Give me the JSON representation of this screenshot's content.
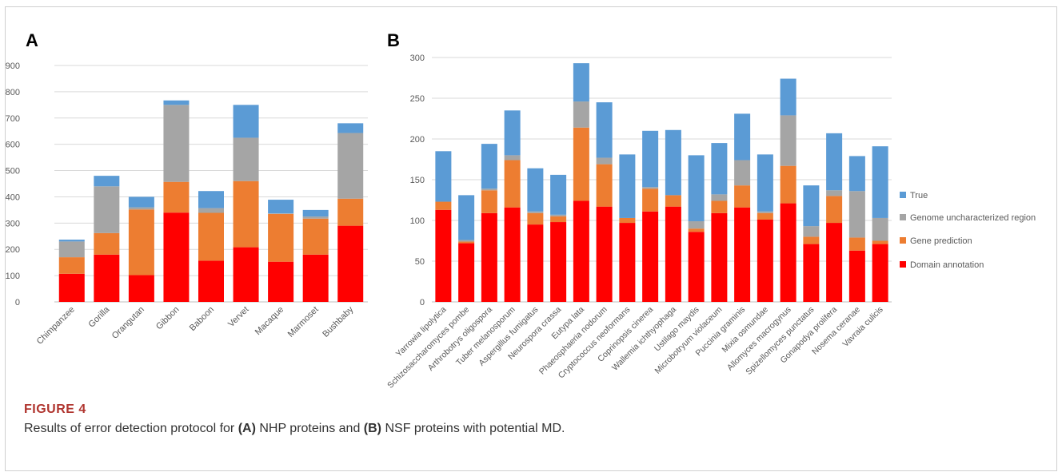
{
  "figure": {
    "label": "FIGURE 4",
    "caption": {
      "pre": "Results of error detection protocol for ",
      "a": "(A)",
      "mid1": " NHP proteins and ",
      "b": "(B)",
      "post": " NSF proteins with potential MD."
    }
  },
  "colors": {
    "Domain annotation": "#ff0000",
    "Gene prediction": "#ed7d31",
    "Genome uncharacterized region": "#a5a5a5",
    "True": "#5b9bd5",
    "grid": "#d9d9d9",
    "axis_text": "#595959"
  },
  "chart_data": [
    {
      "panel": "A",
      "type": "bar",
      "stacked": true,
      "categories": [
        "Chimpanzee",
        "Gorilla",
        "Orangutan",
        "Gibbon",
        "Baboon",
        "Vervet",
        "Macaque",
        "Marmoset",
        "Bushbaby"
      ],
      "series": [
        {
          "name": "Domain annotation",
          "values": [
            107,
            180,
            102,
            340,
            157,
            208,
            153,
            180,
            290
          ]
        },
        {
          "name": "Gene prediction",
          "values": [
            63,
            82,
            250,
            117,
            182,
            252,
            182,
            137,
            103
          ]
        },
        {
          "name": "Genome uncharacterized region",
          "values": [
            60,
            178,
            8,
            293,
            18,
            165,
            2,
            8,
            250
          ]
        },
        {
          "name": "True",
          "values": [
            7,
            40,
            40,
            17,
            65,
            125,
            52,
            25,
            37
          ]
        }
      ],
      "ylim": [
        0,
        900
      ],
      "yticks": [
        0,
        100,
        200,
        300,
        400,
        500,
        600,
        700,
        800,
        900
      ],
      "grid": true,
      "legend": "none"
    },
    {
      "panel": "B",
      "type": "bar",
      "stacked": true,
      "categories": [
        "Yarrowia lipolytica",
        "Schizosaccharomyces pombe",
        "Arthrobotrys oligospora",
        "Tuber melanosporum",
        "Aspergillus fumigatus",
        "Neurospora crassa",
        "Eutypa lata",
        "Phaeosphaeria nodorum",
        "Cryptococcus neoformans",
        "Coprinopsis cinerea",
        "Wallemia ichthyophaga",
        "Ustilago maydis",
        "Microbotryum violaceum",
        "Puccinia graminis",
        "Mixia osmundae",
        "Allomyces macrogynus",
        "Spizellomyces punctatus",
        "Gonapodya prolifera",
        "Nosema ceranae",
        "Vavraia culicis"
      ],
      "series": [
        {
          "name": "Domain annotation",
          "values": [
            113,
            72,
            109,
            116,
            95,
            98,
            124,
            117,
            97,
            111,
            117,
            86,
            109,
            116,
            101,
            121,
            71,
            97,
            63,
            71
          ]
        },
        {
          "name": "Gene prediction",
          "values": [
            10,
            2,
            28,
            58,
            14,
            7,
            90,
            52,
            6,
            28,
            14,
            4,
            15,
            27,
            8,
            46,
            9,
            33,
            16,
            4
          ]
        },
        {
          "name": "Genome uncharacterized region",
          "values": [
            0,
            2,
            2,
            6,
            2,
            2,
            32,
            8,
            0,
            2,
            0,
            9,
            8,
            31,
            2,
            62,
            13,
            7,
            57,
            28
          ]
        },
        {
          "name": "True",
          "values": [
            62,
            55,
            55,
            55,
            53,
            49,
            47,
            68,
            78,
            69,
            80,
            81,
            63,
            57,
            70,
            45,
            50,
            70,
            43,
            88
          ]
        }
      ],
      "ylim": [
        0,
        300
      ],
      "yticks": [
        0,
        50,
        100,
        150,
        200,
        250,
        300
      ],
      "grid": true,
      "legend": "right",
      "legend_entries": [
        "True",
        "Genome uncharacterized region",
        "Gene prediction",
        "Domain annotation"
      ]
    }
  ]
}
